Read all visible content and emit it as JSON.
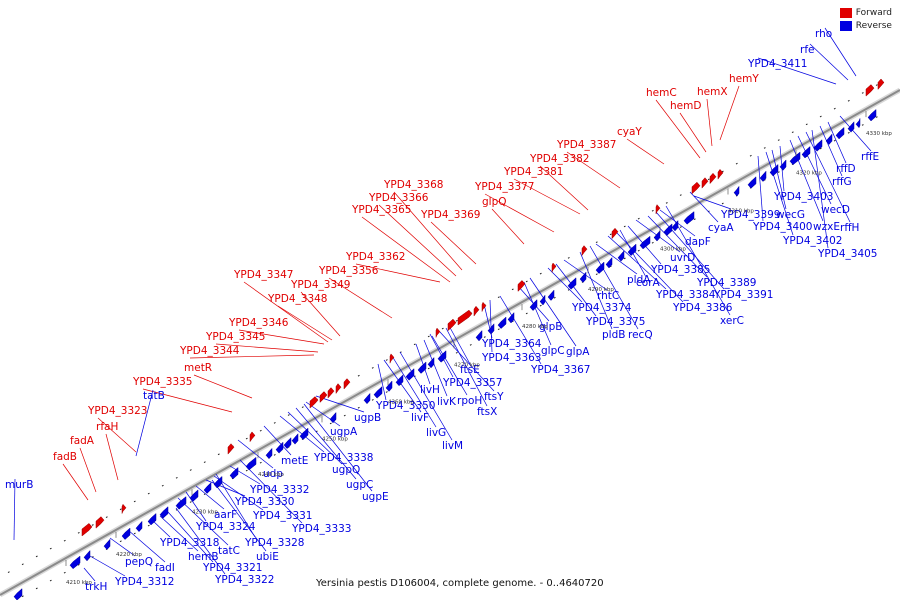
{
  "legend": {
    "forward": "Forward",
    "reverse": "Reverse"
  },
  "colors": {
    "forward": "#e00000",
    "reverse": "#0000e0",
    "backbone": "#999999",
    "leader": "#666666"
  },
  "caption": "Yersinia pestis D106004, complete genome. - 0..4640720",
  "ticks": [
    "4210 kbp",
    "4220 kbp",
    "4230 kbp",
    "4240 kbp",
    "4250 kbp",
    "4260 kbp",
    "4270 kbp",
    "4280 kbp",
    "4290 kbp",
    "4300 kbp",
    "4310 kbp",
    "4320 kbp",
    "4330 kbp"
  ],
  "forward_labels": [
    "fadB",
    "fadA",
    "rfaH",
    "YPD4_3323",
    "YPD4_3335",
    "metR",
    "YPD4_3344",
    "YPD4_3345",
    "YPD4_3346",
    "YPD4_3348",
    "YPD4_3349",
    "YPD4_3347",
    "YPD4_3356",
    "YPD4_3362",
    "YPD4_3365",
    "YPD4_3366",
    "YPD4_3368",
    "YPD4_3369",
    "glpQ",
    "YPD4_3377",
    "YPD4_3381",
    "YPD4_3382",
    "YPD4_3387",
    "cyaY",
    "hemC",
    "hemD",
    "hemX",
    "hemY"
  ],
  "reverse_labels": [
    "murB",
    "trkH",
    "YPD4_3312",
    "pepQ",
    "fadI",
    "YPD4_3318",
    "hemB",
    "YPD4_3321",
    "YPD4_3322",
    "tatC",
    "ubiE",
    "YPD4_3324",
    "YPD4_3328",
    "aarF",
    "YPD4_3330",
    "YPD4_3331",
    "YPD4_3332",
    "udp",
    "YPD4_3333",
    "metE",
    "YPD4_3338",
    "ugpQ",
    "ugpC",
    "ugpE",
    "ugpA",
    "ugpB",
    "tatB",
    "YPD4_3350",
    "livF",
    "livG",
    "livM",
    "livH",
    "livK",
    "rpoH",
    "ftsY",
    "ftsX",
    "ftsE",
    "YPD4_3357",
    "YPD4_3364",
    "YPD4_3363",
    "glpB",
    "glpC",
    "glpA",
    "YPD4_3367",
    "YPD4_3374",
    "YPD4_3375",
    "rhtC",
    "pldB",
    "recQ",
    "pldA",
    "YPD4_3384",
    "YPD4_3386",
    "corA",
    "YPD4_3385",
    "uvrD",
    "YPD4_3389",
    "YPD4_3391",
    "dapF",
    "xerC",
    "YPD4_3399",
    "cyaA",
    "YPD4_3400",
    "YPD4_3402",
    "wecG",
    "YPD4_3403",
    "wzxE",
    "wecD",
    "rffH",
    "YPD4_3405",
    "rffG",
    "rffD",
    "rffE",
    "YPD4_3411",
    "rfe",
    "rho"
  ]
}
